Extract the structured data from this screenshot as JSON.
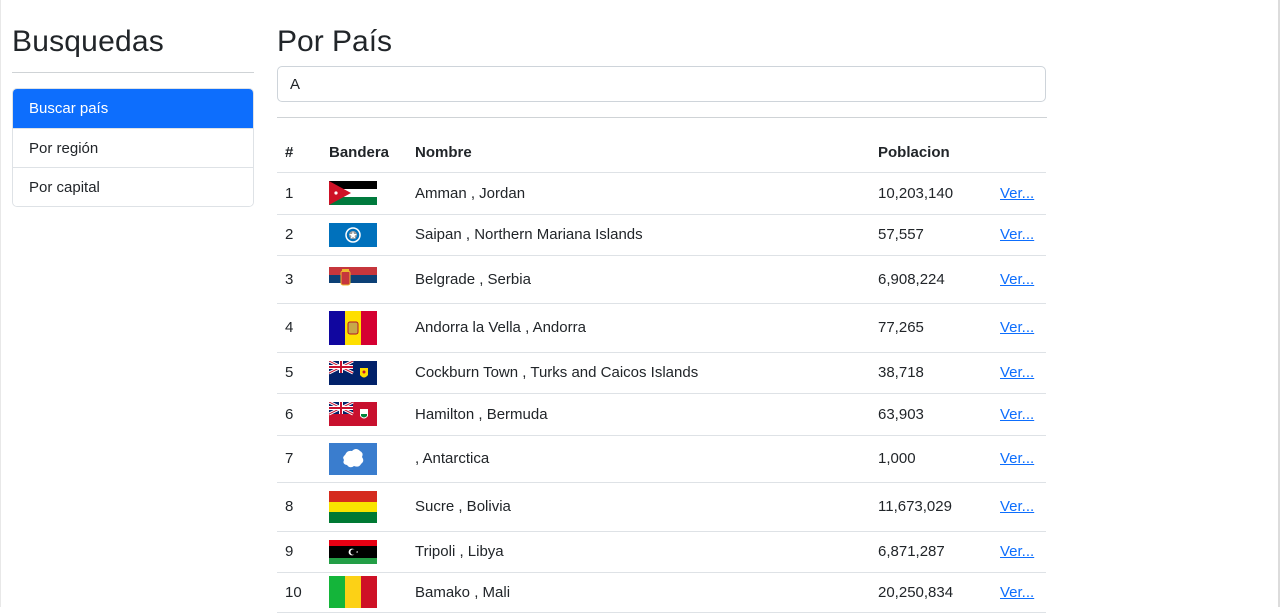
{
  "sidebar": {
    "title": "Busquedas",
    "items": [
      {
        "label": "Buscar país",
        "active": true
      },
      {
        "label": "Por región",
        "active": false
      },
      {
        "label": "Por capital",
        "active": false
      }
    ]
  },
  "main": {
    "title": "Por País",
    "search_value": "A",
    "table": {
      "headers": [
        "#",
        "Bandera",
        "Nombre",
        "Poblacion",
        ""
      ],
      "rows": [
        {
          "num": "1",
          "flag": "jordan-flag-icon",
          "name": "Amman , Jordan",
          "population": "10,203,140",
          "link": "Ver..."
        },
        {
          "num": "2",
          "flag": "northern-mariana-islands-flag-icon",
          "name": "Saipan , Northern Mariana Islands",
          "population": "57,557",
          "link": "Ver..."
        },
        {
          "num": "3",
          "flag": "serbia-flag-icon",
          "name": "Belgrade , Serbia",
          "population": "6,908,224",
          "link": "Ver..."
        },
        {
          "num": "4",
          "flag": "andorra-flag-icon",
          "name": "Andorra la Vella , Andorra",
          "population": "77,265",
          "link": "Ver..."
        },
        {
          "num": "5",
          "flag": "turks-and-caicos-flag-icon",
          "name": "Cockburn Town , Turks and Caicos Islands",
          "population": "38,718",
          "link": "Ver..."
        },
        {
          "num": "6",
          "flag": "bermuda-flag-icon",
          "name": "Hamilton , Bermuda",
          "population": "63,903",
          "link": "Ver..."
        },
        {
          "num": "7",
          "flag": "antarctica-flag-icon",
          "name": ", Antarctica",
          "population": "1,000",
          "link": "Ver..."
        },
        {
          "num": "8",
          "flag": "bolivia-flag-icon",
          "name": "Sucre , Bolivia",
          "population": "11,673,029",
          "link": "Ver..."
        },
        {
          "num": "9",
          "flag": "libya-flag-icon",
          "name": "Tripoli , Libya",
          "population": "6,871,287",
          "link": "Ver..."
        },
        {
          "num": "10",
          "flag": "mali-flag-icon",
          "name": "Bamako , Mali",
          "population": "20,250,834",
          "link": "Ver..."
        }
      ]
    }
  },
  "colors": {
    "accent": "#0d6efd",
    "link": "#0d6efd",
    "border": "#dee2e6"
  }
}
